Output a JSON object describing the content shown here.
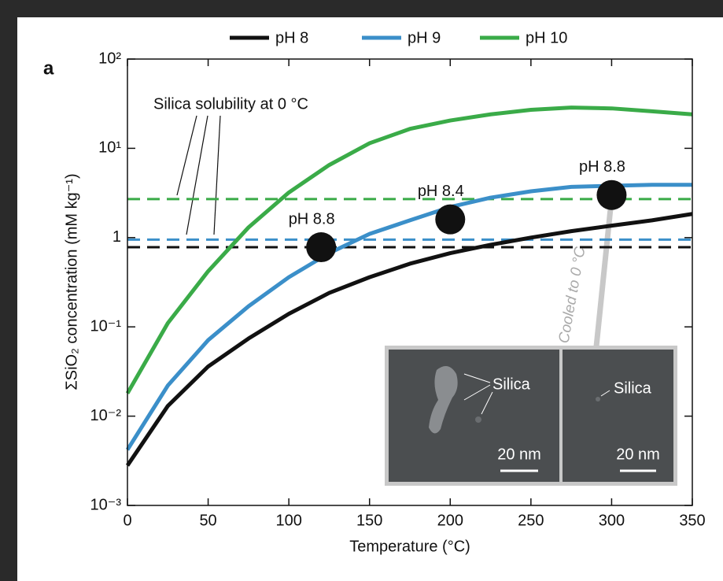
{
  "chart_data": {
    "type": "line",
    "panel_label": "a",
    "xlabel": "Temperature (°C)",
    "ylabel": "ΣSiO₂ concentration (mM kg⁻¹)",
    "xlim": [
      0,
      350
    ],
    "xticks": [
      0,
      50,
      100,
      150,
      200,
      250,
      300,
      350
    ],
    "ylim": [
      0.001,
      100
    ],
    "yscale": "log",
    "yticks": [
      {
        "value": 100,
        "label": "10²"
      },
      {
        "value": 10,
        "label": "10¹"
      },
      1,
      {
        "value": 0.1,
        "label": "10⁻¹"
      },
      {
        "value": 0.01,
        "label": "10⁻²"
      },
      {
        "value": 0.001,
        "label": "10⁻³"
      }
    ],
    "x": [
      0,
      25,
      50,
      75,
      100,
      125,
      150,
      175,
      200,
      225,
      250,
      275,
      300,
      325,
      350
    ],
    "series": [
      {
        "name": "pH 8",
        "color": "#111111",
        "values": [
          0.0028,
          0.013,
          0.036,
          0.074,
          0.14,
          0.24,
          0.36,
          0.51,
          0.67,
          0.83,
          1.0,
          1.18,
          1.36,
          1.56,
          1.84
        ]
      },
      {
        "name": "pH 9",
        "color": "#3b8fc9",
        "values": [
          0.0042,
          0.022,
          0.071,
          0.17,
          0.36,
          0.67,
          1.1,
          1.56,
          2.2,
          2.8,
          3.3,
          3.7,
          3.8,
          3.9,
          3.9
        ]
      },
      {
        "name": "pH 10",
        "color": "#3aab48",
        "values": [
          0.018,
          0.11,
          0.42,
          1.3,
          3.2,
          6.5,
          11.4,
          16.5,
          20.5,
          24,
          27,
          28.6,
          28,
          26,
          24
        ]
      }
    ],
    "reference_lines": [
      {
        "color": "#3aab48",
        "value": 2.7
      },
      {
        "color": "#3b8fc9",
        "value": 0.95
      },
      {
        "color": "#111111",
        "value": 0.78
      }
    ],
    "reference_label": "Silica solubility at 0 °C",
    "points": [
      {
        "x": 120,
        "y": 0.78,
        "label": "pH 8.8"
      },
      {
        "x": 200,
        "y": 1.6,
        "label": "pH 8.4"
      },
      {
        "x": 300,
        "y": 3.0,
        "label": "pH 8.8"
      }
    ],
    "inset": {
      "annotation": "Cooled to 0 °C",
      "panels": [
        {
          "label": "Silica",
          "scale": "20 nm"
        },
        {
          "label": "Silica",
          "scale": "20 nm"
        }
      ]
    }
  }
}
